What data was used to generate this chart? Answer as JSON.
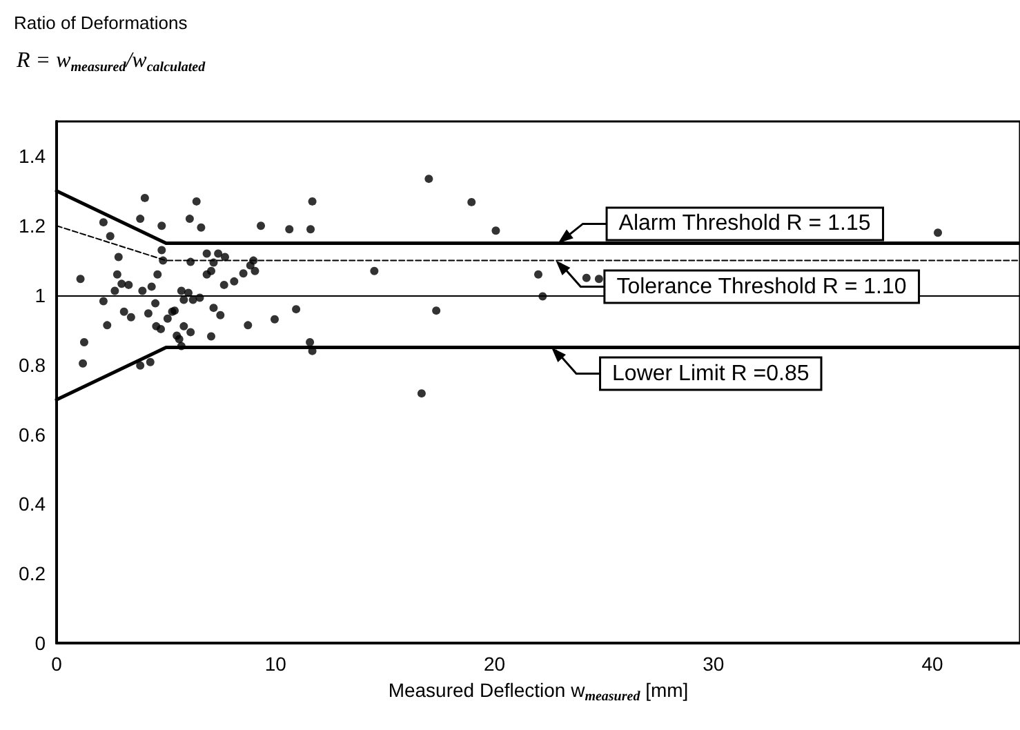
{
  "chart_data": {
    "type": "scatter",
    "ylabel": "Ratio of Deformations",
    "xlabel": "Measured Deflection w$_{measured}$ [mm]",
    "annotations": [
      "R = w$_{measured}$/w$_{calculated}$",
      {
        "text": "Alarm Threshold R = 1.15",
        "x": 22.9,
        "y": 1.15
      },
      {
        "text": "Tolerance Threshold R = 1.10",
        "x": 22.8,
        "y": 1.1
      },
      {
        "text": "Lower Limit R =0.85",
        "x": 22.6,
        "y": 0.85
      }
    ],
    "xlim": [
      0,
      44
    ],
    "xticks": [
      0,
      10,
      20,
      30,
      40
    ],
    "ylim": [
      0,
      1.5
    ],
    "yticks": [
      0,
      0.2,
      0.4,
      0.6,
      0.8,
      1,
      1.2,
      1.4
    ],
    "grid": false,
    "marker": "circle",
    "ref_lines": [
      {
        "axis": "y",
        "value": 1,
        "label": null,
        "color": "#000000"
      }
    ],
    "series": [
      {
        "color": "#000000",
        "x": [
          4.03,
          6.39,
          2.14,
          3.82,
          4.8,
          6.08,
          6.6,
          11.68,
          9.33,
          10.63,
          11.6,
          2.45,
          4.8,
          4.86,
          2.83,
          6.12,
          6.86,
          7.38,
          7.69,
          7.17,
          7.06,
          6.86,
          8.99,
          8.85,
          9.06,
          8.53,
          8.11,
          7.65,
          1.09,
          2.77,
          2.97,
          3.29,
          2.66,
          3.92,
          4.34,
          4.61,
          5.7,
          6.02,
          6.23,
          6.54,
          5.81,
          2.14,
          4.51,
          3.08,
          3.4,
          4.19,
          5.28,
          5.39,
          5.07,
          7.17,
          7.48,
          10.94,
          9.96,
          8.74,
          2.31,
          4.55,
          4.76,
          5.81,
          6.12,
          5.49,
          5.6,
          7.06,
          11.57,
          11.68,
          1.26,
          1.2,
          3.82,
          4.28,
          5.7,
          17.0,
          18.95,
          20.06,
          40.25,
          14.51,
          22.0,
          24.2,
          24.77,
          22.2,
          17.34,
          16.67
        ],
        "values": [
          1.28,
          1.27,
          1.21,
          1.22,
          1.2,
          1.22,
          1.195,
          1.27,
          1.2,
          1.19,
          1.19,
          1.17,
          1.13,
          1.1,
          1.11,
          1.096,
          1.12,
          1.12,
          1.11,
          1.094,
          1.07,
          1.06,
          1.1,
          1.086,
          1.07,
          1.063,
          1.04,
          1.03,
          1.047,
          1.06,
          1.033,
          1.03,
          1.013,
          1.013,
          1.025,
          1.06,
          1.013,
          1.007,
          0.987,
          0.993,
          0.987,
          0.983,
          0.977,
          0.953,
          0.937,
          0.948,
          0.953,
          0.956,
          0.933,
          0.964,
          0.943,
          0.96,
          0.931,
          0.914,
          0.914,
          0.911,
          0.903,
          0.911,
          0.894,
          0.884,
          0.874,
          0.882,
          0.865,
          0.84,
          0.865,
          0.804,
          0.798,
          0.808,
          0.854,
          1.335,
          1.268,
          1.186,
          1.18,
          1.07,
          1.06,
          1.05,
          1.047,
          0.997,
          0.956,
          0.718
        ]
      },
      {
        "type": "line",
        "color": "#000000",
        "marker": "none",
        "line_style": "solid",
        "x": [
          0,
          5,
          44
        ],
        "values": [
          1.3,
          1.15,
          1.15
        ]
      },
      {
        "type": "line",
        "color": "#000000",
        "marker": "none",
        "line_style": "dashed",
        "x": [
          0,
          5,
          44
        ],
        "values": [
          1.2,
          1.1,
          1.1
        ]
      },
      {
        "type": "line",
        "color": "#000000",
        "marker": "none",
        "line_style": "solid",
        "x": [
          0,
          5,
          44
        ],
        "values": [
          0.7,
          0.85,
          0.85
        ]
      }
    ]
  }
}
